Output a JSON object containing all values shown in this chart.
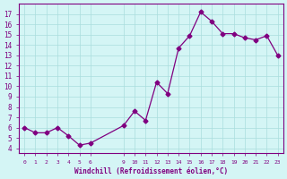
{
  "x": [
    0,
    1,
    2,
    3,
    4,
    5,
    6,
    9,
    10,
    11,
    12,
    13,
    14,
    15,
    16,
    17,
    18,
    19,
    20,
    21,
    22,
    23
  ],
  "y": [
    6.0,
    5.5,
    5.5,
    6.0,
    5.2,
    4.3,
    4.5,
    6.2,
    7.6,
    6.7,
    10.4,
    9.3,
    13.7,
    14.9,
    17.2,
    16.3,
    15.1,
    15.1,
    14.7,
    14.5,
    14.9,
    13.0
  ],
  "x_ticks": [
    0,
    1,
    2,
    3,
    4,
    5,
    6,
    9,
    10,
    11,
    12,
    13,
    14,
    15,
    16,
    17,
    18,
    19,
    20,
    21,
    22,
    23
  ],
  "y_ticks": [
    4,
    5,
    6,
    7,
    8,
    9,
    10,
    11,
    12,
    13,
    14,
    15,
    16,
    17
  ],
  "ylim": [
    3.5,
    18.0
  ],
  "xlim": [
    -0.5,
    23.5
  ],
  "line_color": "#800080",
  "marker_color": "#800080",
  "bg_color": "#d4f5f5",
  "grid_color": "#aadddd",
  "xlabel": "Windchill (Refroidissement éolien,°C)",
  "xlabel_color": "#800080",
  "tick_color": "#800080",
  "axis_color": "#800080"
}
